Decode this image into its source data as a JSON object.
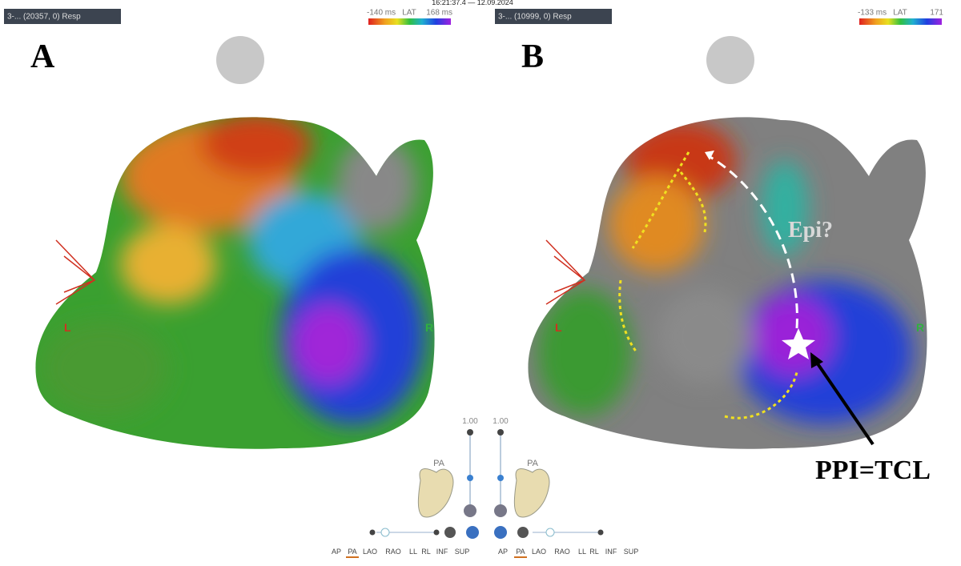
{
  "timestamp": "16:21:37.4 — 12.09.2024",
  "panels": [
    {
      "letter": "A",
      "header": "3-... (20357, 0) Resp",
      "scale_min": "-140 ms",
      "scale_label": "LAT",
      "scale_max": "168 ms",
      "left_label": "L",
      "right_label": "R"
    },
    {
      "letter": "B",
      "header": "3-... (10999, 0) Resp",
      "scale_min": "-133 ms",
      "scale_label": "LAT",
      "scale_max": "171",
      "left_label": "L",
      "right_label": "R"
    }
  ],
  "annotations": {
    "epi": "Epi?",
    "ppi": "PPI=TCL"
  },
  "controls": [
    {
      "scale": "1.00",
      "view": "PA",
      "buttons": [
        "AP",
        "PA",
        "LAO",
        "RAO",
        "LL",
        "RL",
        "INF",
        "SUP"
      ]
    },
    {
      "scale": "1.00",
      "view": "PA",
      "buttons": [
        "AP",
        "PA",
        "LAO",
        "RAO",
        "LL",
        "RL",
        "INF",
        "SUP"
      ]
    }
  ]
}
